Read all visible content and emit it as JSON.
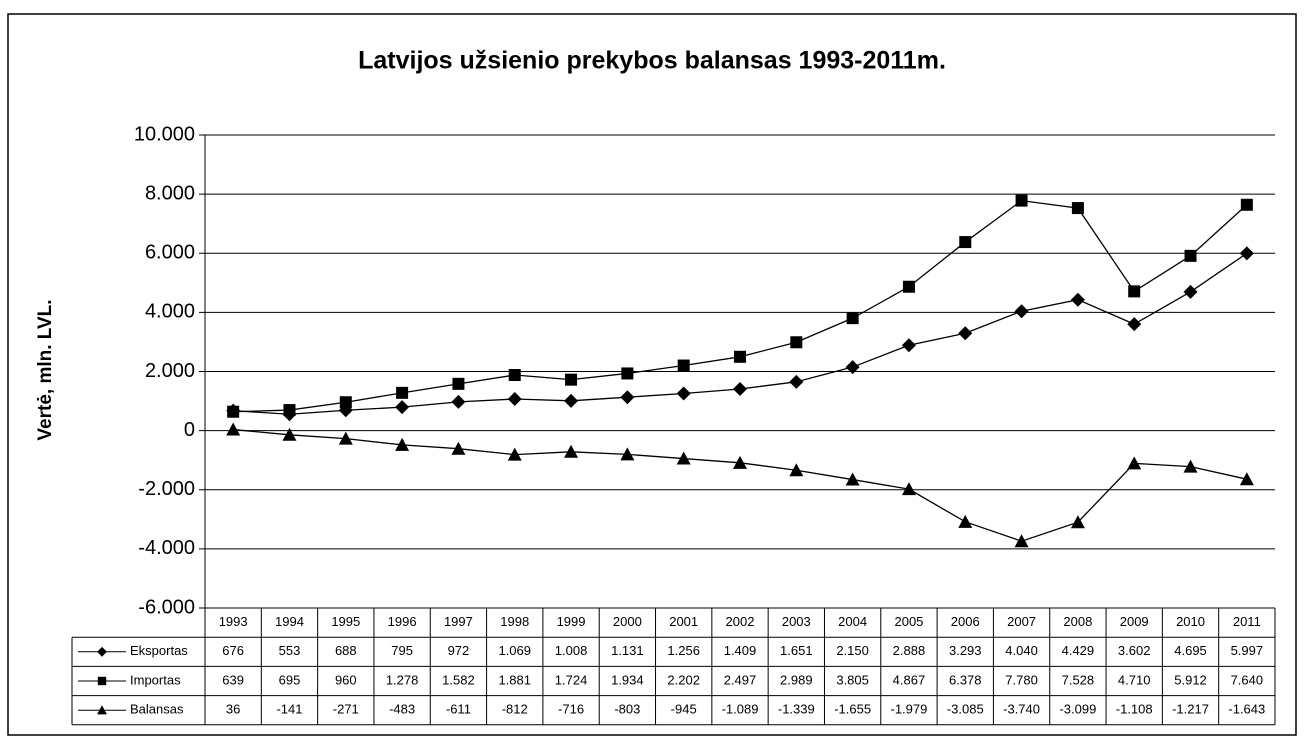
{
  "chart_data": {
    "type": "line",
    "title": "Latvijos užsienio prekybos balansas 1993-2011m.",
    "y_label": "Vertė, mln. LVL.",
    "categories": [
      "1993",
      "1994",
      "1995",
      "1996",
      "1997",
      "1998",
      "1999",
      "2000",
      "2001",
      "2002",
      "2003",
      "2004",
      "2005",
      "2006",
      "2007",
      "2008",
      "2009",
      "2010",
      "2011"
    ],
    "series": [
      {
        "name": "Eksportas",
        "color": "#000000",
        "marker": "diamond",
        "values": [
          676,
          553,
          688,
          795,
          972,
          1069,
          1008,
          1131,
          1256,
          1409,
          1651,
          2150,
          2888,
          3293,
          4040,
          4429,
          3602,
          4695,
          5997
        ],
        "value_labels": [
          "676",
          "553",
          "688",
          "795",
          "972",
          "1.069",
          "1.008",
          "1.131",
          "1.256",
          "1.409",
          "1.651",
          "2.150",
          "2.888",
          "3.293",
          "4.040",
          "4.429",
          "3.602",
          "4.695",
          "5.997"
        ]
      },
      {
        "name": "Importas",
        "color": "#000000",
        "marker": "square",
        "values": [
          639,
          695,
          960,
          1278,
          1582,
          1881,
          1724,
          1934,
          2202,
          2497,
          2989,
          3805,
          4867,
          6378,
          7780,
          7528,
          4710,
          5912,
          7640
        ],
        "value_labels": [
          "639",
          "695",
          "960",
          "1.278",
          "1.582",
          "1.881",
          "1.724",
          "1.934",
          "2.202",
          "2.497",
          "2.989",
          "3.805",
          "4.867",
          "6.378",
          "7.780",
          "7.528",
          "4.710",
          "5.912",
          "7.640"
        ]
      },
      {
        "name": "Balansas",
        "color": "#000000",
        "marker": "triangle",
        "values": [
          36,
          -141,
          -271,
          -483,
          -611,
          -812,
          -716,
          -803,
          -945,
          -1089,
          -1339,
          -1655,
          -1979,
          -3085,
          -3740,
          -3099,
          -1108,
          -1217,
          -1643
        ],
        "value_labels": [
          "36",
          "-141",
          "-271",
          "-483",
          "-611",
          "-812",
          "-716",
          "-803",
          "-945",
          "-1.089",
          "-1.339",
          "-1.655",
          "-1.979",
          "-3.085",
          "-3.740",
          "-3.099",
          "-1.108",
          "-1.217",
          "-1.643"
        ]
      }
    ],
    "ylim": [
      -6000,
      10000
    ],
    "yticks": [
      {
        "value": -6000,
        "label": "-6.000"
      },
      {
        "value": -4000,
        "label": "-4.000"
      },
      {
        "value": -2000,
        "label": "-2.000"
      },
      0,
      {
        "value": 2000,
        "label": "2.000"
      },
      {
        "value": 4000,
        "label": "4.000"
      },
      {
        "value": 6000,
        "label": "6.000"
      },
      {
        "value": 8000,
        "label": "8.000"
      },
      {
        "value": 10000,
        "label": "10.000"
      }
    ],
    "grid": true
  }
}
